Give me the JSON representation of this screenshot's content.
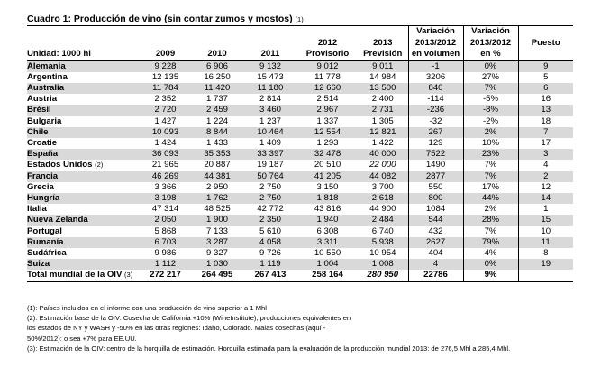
{
  "title": "Cuadro 1: Producción de vino (sin contar zumos y mostos)",
  "title_note": "(1)",
  "headers": {
    "unit": "Unidad: 1000 hl",
    "y2009": "2009",
    "y2010": "2010",
    "y2011": "2011",
    "y2012": "2012",
    "y2012b": "Provisorio",
    "y2013": "2013",
    "y2013b": "Previsión",
    "vol1": "Variación",
    "vol2": "2013/2012",
    "vol3": "en volumen",
    "pct1": "Variación",
    "pct2": "2013/2012",
    "pct3": "en %",
    "rank": "Puesto"
  },
  "rows": [
    {
      "country": "Alemania",
      "note": "",
      "v2009": "9 228",
      "v2010": "6 906",
      "v2011": "9 132",
      "v2012": "9 012",
      "v2013": "9 011",
      "vol": "-1",
      "pct": "0%",
      "rank": "9"
    },
    {
      "country": "Argentina",
      "note": "",
      "v2009": "12 135",
      "v2010": "16 250",
      "v2011": "15 473",
      "v2012": "11 778",
      "v2013": "14 984",
      "vol": "3206",
      "pct": "27%",
      "rank": "5"
    },
    {
      "country": "Australia",
      "note": "",
      "v2009": "11 784",
      "v2010": "11 420",
      "v2011": "11 180",
      "v2012": "12 660",
      "v2013": "13 500",
      "vol": "840",
      "pct": "7%",
      "rank": "6"
    },
    {
      "country": "Austria",
      "note": "",
      "v2009": "2 352",
      "v2010": "1 737",
      "v2011": "2 814",
      "v2012": "2 514",
      "v2013": "2 400",
      "vol": "-114",
      "pct": "-5%",
      "rank": "16"
    },
    {
      "country": "Brésil",
      "note": "",
      "v2009": "2 720",
      "v2010": "2 459",
      "v2011": "3 460",
      "v2012": "2 967",
      "v2013": "2 731",
      "vol": "-236",
      "pct": "-8%",
      "rank": "13"
    },
    {
      "country": "Bulgaria",
      "note": "",
      "v2009": "1 427",
      "v2010": "1 224",
      "v2011": "1 237",
      "v2012": "1 337",
      "v2013": "1 305",
      "vol": "-32",
      "pct": "-2%",
      "rank": "18"
    },
    {
      "country": "Chile",
      "note": "",
      "v2009": "10 093",
      "v2010": "8 844",
      "v2011": "10 464",
      "v2012": "12 554",
      "v2013": "12 821",
      "vol": "267",
      "pct": "2%",
      "rank": "7"
    },
    {
      "country": "Croatie",
      "note": "",
      "v2009": "1 424",
      "v2010": "1 433",
      "v2011": "1 409",
      "v2012": "1 293",
      "v2013": "1 422",
      "vol": "129",
      "pct": "10%",
      "rank": "17"
    },
    {
      "country": "España",
      "note": "",
      "v2009": "36 093",
      "v2010": "35 353",
      "v2011": "33 397",
      "v2012": "32 478",
      "v2013": "40 000",
      "vol": "7522",
      "pct": "23%",
      "rank": "3"
    },
    {
      "country": "Estados Unidos",
      "note": "(2)",
      "v2009": "21 965",
      "v2010": "20 887",
      "v2011": "19 187",
      "v2012": "20 510",
      "v2013": "22 000",
      "vol": "1490",
      "pct": "7%",
      "rank": "4"
    },
    {
      "country": "Francia",
      "note": "",
      "v2009": "46 269",
      "v2010": "44 381",
      "v2011": "50 764",
      "v2012": "41 205",
      "v2013": "44 082",
      "vol": "2877",
      "pct": "7%",
      "rank": "2"
    },
    {
      "country": "Grecia",
      "note": "",
      "v2009": "3 366",
      "v2010": "2 950",
      "v2011": "2 750",
      "v2012": "3 150",
      "v2013": "3 700",
      "vol": "550",
      "pct": "17%",
      "rank": "12"
    },
    {
      "country": "Hungría",
      "note": "",
      "v2009": "3 198",
      "v2010": "1 762",
      "v2011": "2 750",
      "v2012": "1 818",
      "v2013": "2 618",
      "vol": "800",
      "pct": "44%",
      "rank": "14"
    },
    {
      "country": "Italia",
      "note": "",
      "v2009": "47 314",
      "v2010": "48 525",
      "v2011": "42 772",
      "v2012": "43 816",
      "v2013": "44 900",
      "vol": "1084",
      "pct": "2%",
      "rank": "1"
    },
    {
      "country": "Nueva Zelanda",
      "note": "",
      "v2009": "2 050",
      "v2010": "1 900",
      "v2011": "2 350",
      "v2012": "1 940",
      "v2013": "2 484",
      "vol": "544",
      "pct": "28%",
      "rank": "15"
    },
    {
      "country": "Portugal",
      "note": "",
      "v2009": "5 868",
      "v2010": "7 133",
      "v2011": "5 610",
      "v2012": "6 308",
      "v2013": "6 740",
      "vol": "432",
      "pct": "7%",
      "rank": "10"
    },
    {
      "country": "Rumanía",
      "note": "",
      "v2009": "6 703",
      "v2010": "3 287",
      "v2011": "4 058",
      "v2012": "3 311",
      "v2013": "5 938",
      "vol": "2627",
      "pct": "79%",
      "rank": "11"
    },
    {
      "country": "Sudáfrica",
      "note": "",
      "v2009": "9 986",
      "v2010": "9 327",
      "v2011": "9 726",
      "v2012": "10 550",
      "v2013": "10 954",
      "vol": "404",
      "pct": "4%",
      "rank": "8"
    },
    {
      "country": "Suiza",
      "note": "",
      "v2009": "1 112",
      "v2010": "1 030",
      "v2011": "1 119",
      "v2012": "1 004",
      "v2013": "1 008",
      "vol": "4",
      "pct": "0%",
      "rank": "19"
    }
  ],
  "total": {
    "country": "Total mundial de la OIV",
    "note": "(3)",
    "v2009": "272 217",
    "v2010": "264 495",
    "v2011": "267 413",
    "v2012": "258 164",
    "v2013": "280 950",
    "vol": "22786",
    "pct": "9%",
    "rank": ""
  },
  "notes": [
    "(1): Países incluidos en el informe con una producción de vino superior a 1 Mhl",
    "(2): Estimación base de la OIV: Cosecha de California +10% (WineInstitute), producciones equivalentes en",
    "los estados de NY y WASH y -50% en las otras regiones: Idaho, Colorado. Malas cosechas (aquí -",
    "50%/2012): o sea +7% para EE.UU.",
    "(3): Estimación de la OIV: centro de la horquilla de estimación. Horquilla estimada para la evaluación de la producción mundial 2013: de 276,5 Mhl a 285,4 Mhl."
  ]
}
